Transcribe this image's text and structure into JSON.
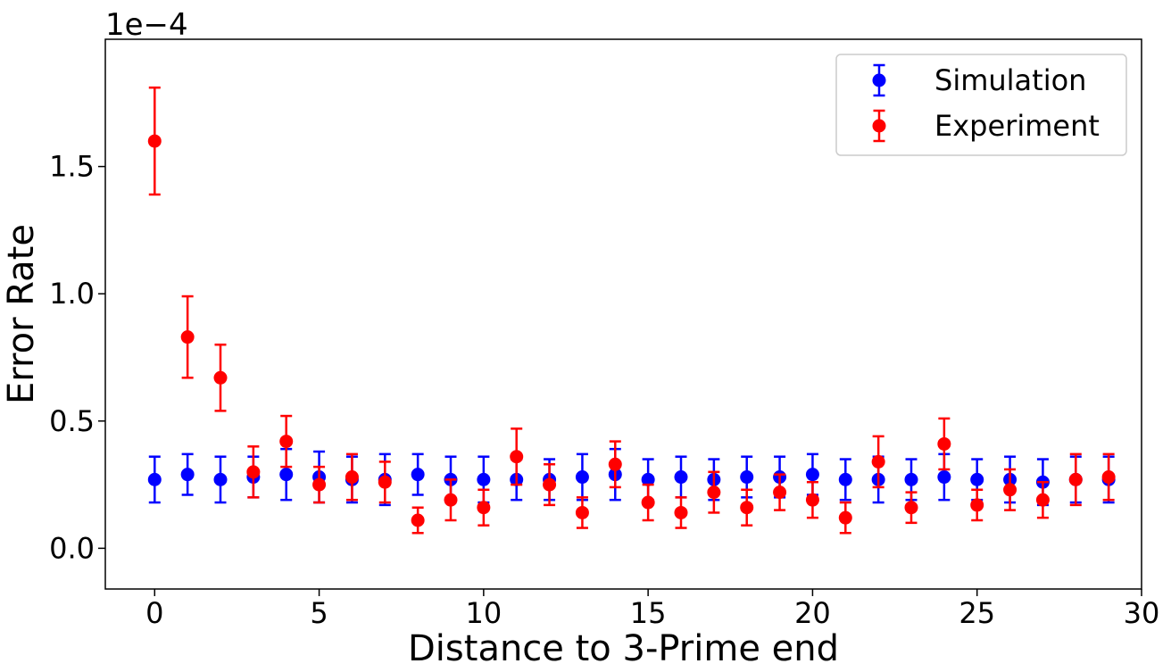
{
  "chart_data": {
    "type": "scatter",
    "title": "",
    "xlabel": "Distance to 3-Prime end",
    "ylabel": "Error Rate",
    "y_scale_label": "1e−4",
    "xlim": [
      -1.5,
      30
    ],
    "ylim": [
      -0.16,
      2.0
    ],
    "x_ticks": [
      0,
      5,
      10,
      15,
      20,
      25,
      30
    ],
    "x_tick_labels": [
      "0",
      "5",
      "10",
      "15",
      "20",
      "25",
      "30"
    ],
    "y_ticks": [
      0.0,
      0.5,
      1.0,
      1.5
    ],
    "y_tick_labels": [
      "0.0",
      "0.5",
      "1.0",
      "1.5"
    ],
    "grid": false,
    "legend_position": "top-right",
    "series": [
      {
        "name": "Simulation",
        "color": "#0000ff",
        "x": [
          0,
          1,
          2,
          3,
          4,
          5,
          6,
          7,
          8,
          9,
          10,
          11,
          12,
          13,
          14,
          15,
          16,
          17,
          18,
          19,
          20,
          21,
          22,
          23,
          24,
          25,
          26,
          27,
          28,
          29
        ],
        "y": [
          0.27,
          0.29,
          0.27,
          0.28,
          0.29,
          0.28,
          0.27,
          0.27,
          0.29,
          0.27,
          0.27,
          0.27,
          0.27,
          0.28,
          0.29,
          0.27,
          0.28,
          0.27,
          0.28,
          0.28,
          0.29,
          0.27,
          0.27,
          0.27,
          0.28,
          0.27,
          0.27,
          0.26,
          0.27,
          0.27
        ],
        "err": [
          0.09,
          0.08,
          0.09,
          0.08,
          0.1,
          0.1,
          0.09,
          0.1,
          0.08,
          0.09,
          0.09,
          0.08,
          0.08,
          0.09,
          0.1,
          0.08,
          0.08,
          0.08,
          0.08,
          0.08,
          0.08,
          0.08,
          0.09,
          0.08,
          0.09,
          0.08,
          0.09,
          0.09,
          0.09,
          0.09
        ]
      },
      {
        "name": "Experiment",
        "color": "#ff0000",
        "x": [
          0,
          1,
          2,
          3,
          4,
          5,
          6,
          7,
          8,
          9,
          10,
          11,
          12,
          13,
          14,
          15,
          16,
          17,
          18,
          19,
          20,
          21,
          22,
          23,
          24,
          25,
          26,
          27,
          28,
          29
        ],
        "y": [
          1.6,
          0.83,
          0.67,
          0.3,
          0.42,
          0.25,
          0.28,
          0.26,
          0.11,
          0.19,
          0.16,
          0.36,
          0.25,
          0.14,
          0.33,
          0.18,
          0.14,
          0.22,
          0.16,
          0.22,
          0.19,
          0.12,
          0.34,
          0.16,
          0.41,
          0.17,
          0.23,
          0.19,
          0.27,
          0.28
        ],
        "err": [
          0.21,
          0.16,
          0.13,
          0.1,
          0.1,
          0.07,
          0.09,
          0.08,
          0.05,
          0.08,
          0.07,
          0.11,
          0.08,
          0.06,
          0.09,
          0.07,
          0.06,
          0.08,
          0.07,
          0.07,
          0.07,
          0.06,
          0.1,
          0.06,
          0.1,
          0.06,
          0.08,
          0.07,
          0.1,
          0.09
        ]
      }
    ]
  }
}
